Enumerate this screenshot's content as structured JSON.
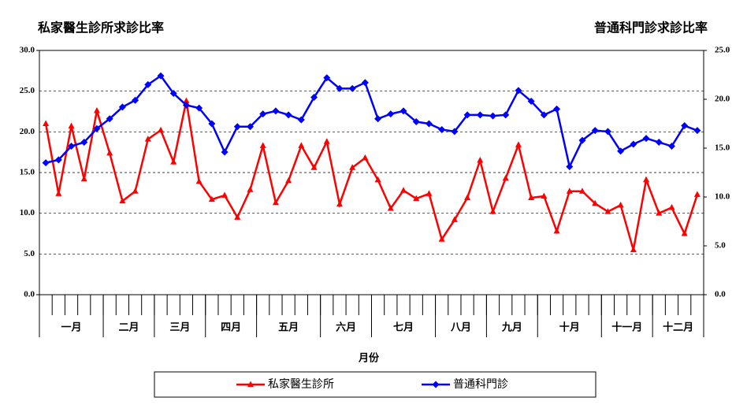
{
  "chart_data": {
    "type": "line",
    "title_left": "私家醫生診所求診比率",
    "title_right": "普通科門診求診比率",
    "x_label": "月份",
    "categories": [
      null,
      null,
      null,
      null,
      null,
      null,
      null,
      null,
      null,
      null,
      null,
      null,
      null,
      null,
      null,
      null,
      null,
      null,
      null,
      null,
      null,
      null,
      null,
      null,
      null,
      null,
      null,
      null,
      null,
      null,
      null,
      null,
      null,
      null,
      null,
      null,
      null,
      null,
      null,
      null,
      null,
      null,
      null,
      null,
      null,
      null,
      null,
      null,
      null,
      null,
      null,
      null
    ],
    "x_groups": [
      {
        "label": "一月",
        "count": 5
      },
      {
        "label": "二月",
        "count": 4
      },
      {
        "label": "三月",
        "count": 4
      },
      {
        "label": "四月",
        "count": 4
      },
      {
        "label": "五月",
        "count": 5
      },
      {
        "label": "六月",
        "count": 4
      },
      {
        "label": "七月",
        "count": 5
      },
      {
        "label": "八月",
        "count": 4
      },
      {
        "label": "九月",
        "count": 4
      },
      {
        "label": "十月",
        "count": 5
      },
      {
        "label": "十一月",
        "count": 4
      },
      {
        "label": "十二月",
        "count": 4
      }
    ],
    "series": [
      {
        "name": "私家醫生診所",
        "color": "#ff0000",
        "marker": "triangle",
        "axis": "y",
        "values": [
          21.0,
          12.4,
          20.7,
          14.2,
          22.6,
          17.4,
          11.5,
          12.7,
          19.1,
          20.2,
          16.3,
          23.8,
          13.9,
          11.7,
          12.2,
          9.5,
          12.9,
          18.3,
          11.3,
          14.0,
          18.3,
          15.6,
          18.8,
          11.1,
          15.6,
          16.8,
          14.1,
          10.6,
          12.8,
          11.8,
          12.4,
          6.8,
          9.2,
          11.9,
          16.5,
          10.2,
          14.3,
          18.4,
          11.9,
          12.1,
          7.8,
          12.7,
          12.7,
          11.2,
          10.2,
          11.0,
          5.5,
          14.1,
          10.0,
          10.7,
          7.5,
          12.3
        ]
      },
      {
        "name": "普通科門診",
        "color": "#0000ff",
        "marker": "diamond",
        "axis": "y2",
        "values": [
          13.5,
          13.8,
          15.2,
          15.6,
          17.0,
          18.0,
          19.2,
          19.9,
          21.5,
          22.4,
          20.6,
          19.4,
          19.1,
          17.5,
          14.6,
          17.2,
          17.2,
          18.5,
          18.8,
          18.4,
          17.9,
          20.2,
          22.2,
          21.1,
          21.1,
          21.7,
          18.0,
          18.5,
          18.8,
          17.7,
          17.5,
          16.9,
          16.7,
          18.4,
          18.4,
          18.3,
          18.4,
          20.9,
          19.8,
          18.4,
          19.0,
          13.1,
          15.8,
          16.8,
          16.7,
          14.7,
          15.4,
          16.0,
          15.6,
          15.2,
          17.3,
          16.8
        ]
      }
    ],
    "ylim": [
      0,
      30
    ],
    "yticks": [
      {
        "value": 0,
        "label": "0.0"
      },
      {
        "value": 5,
        "label": "5.0"
      },
      {
        "value": 10,
        "label": "10.0"
      },
      {
        "value": 15,
        "label": "15.0"
      },
      {
        "value": 20,
        "label": "20.0"
      },
      {
        "value": 25,
        "label": "25.0"
      },
      {
        "value": 30,
        "label": "30.0"
      }
    ],
    "y2lim": [
      0,
      25
    ],
    "y2ticks": [
      {
        "value": 0,
        "label": "0.0"
      },
      {
        "value": 5,
        "label": "5.0"
      },
      {
        "value": 10,
        "label": "10.0"
      },
      {
        "value": 15,
        "label": "15.0"
      },
      {
        "value": 20,
        "label": "20.0"
      },
      {
        "value": 25,
        "label": "25.0"
      }
    ],
    "grid": true,
    "legend": "bottom"
  }
}
